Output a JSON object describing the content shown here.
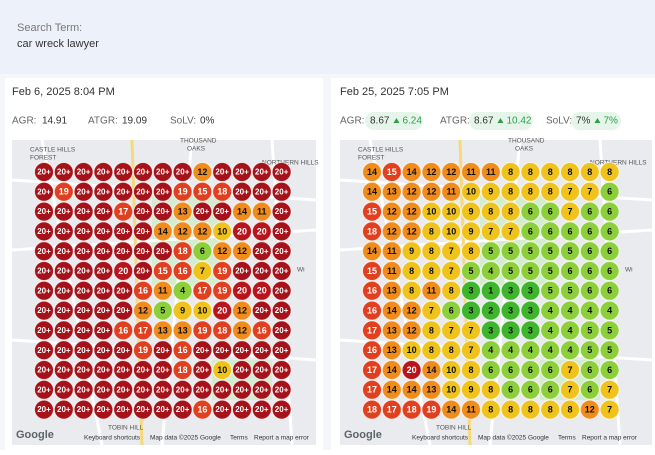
{
  "search": {
    "label": "Search Term:",
    "term": "car wreck lawyer"
  },
  "panels": [
    {
      "date": "Feb 6, 2025 8:04 PM",
      "metrics": [
        {
          "label": "AGR:",
          "value": 14.91
        },
        {
          "label": "ATGR:",
          "value": 19.09
        },
        {
          "label": "SoLV:",
          "value": "0%"
        }
      ],
      "grid": [
        [
          "20+",
          "20+",
          "20+",
          "20+",
          "20+",
          "20+",
          "20+",
          "20+",
          12,
          "20+",
          "20+",
          "20+",
          "20+"
        ],
        [
          "20+",
          19,
          "20+",
          "20+",
          "20+",
          "20+",
          "20+",
          19,
          15,
          18,
          "20+",
          "20+",
          "20+"
        ],
        [
          "20+",
          "20+",
          "20+",
          "20+",
          17,
          "20+",
          "20+",
          13,
          "20+",
          "20+",
          14,
          11,
          "20+"
        ],
        [
          "20+",
          "20+",
          "20+",
          "20+",
          "20+",
          "20+",
          14,
          12,
          12,
          10,
          20,
          20,
          "20+"
        ],
        [
          "20+",
          "20+",
          "20+",
          "20+",
          "20+",
          "20+",
          "20+",
          18,
          6,
          12,
          12,
          "20+",
          "20+"
        ],
        [
          "20+",
          "20+",
          "20+",
          "20+",
          20,
          "20+",
          15,
          16,
          7,
          19,
          "20+",
          "20+",
          "20+"
        ],
        [
          "20+",
          "20+",
          "20+",
          "20+",
          "20+",
          16,
          11,
          4,
          17,
          19,
          20,
          20,
          "20+"
        ],
        [
          "20+",
          "20+",
          "20+",
          "20+",
          "20+",
          12,
          5,
          9,
          10,
          20,
          12,
          "20+",
          "20+"
        ],
        [
          "20+",
          "20+",
          "20+",
          "20+",
          16,
          17,
          13,
          13,
          19,
          18,
          12,
          16,
          "20+"
        ],
        [
          "20+",
          "20+",
          "20+",
          "20+",
          "20+",
          19,
          "20+",
          16,
          "20+",
          "20+",
          "20+",
          "20+",
          "20+"
        ],
        [
          "20+",
          "20+",
          "20+",
          "20+",
          "20+",
          "20+",
          "20+",
          18,
          "20+",
          10,
          "20+",
          "20+",
          "20+"
        ],
        [
          "20+",
          "20+",
          "20+",
          "20+",
          "20+",
          "20+",
          "20+",
          "20+",
          "20+",
          "20+",
          "20+",
          "20+",
          "20+"
        ],
        [
          "20+",
          "20+",
          "20+",
          "20+",
          "20+",
          "20+",
          "20+",
          "20+",
          16,
          "20+",
          "20+",
          "20+",
          "20+"
        ]
      ]
    },
    {
      "date": "Feb 25, 2025 7:05 PM",
      "metrics": [
        {
          "label": "AGR:",
          "value": 8.67,
          "change": 6.24
        },
        {
          "label": "ATGR:",
          "value": 8.67,
          "change": 10.42
        },
        {
          "label": "SoLV:",
          "value": "7%",
          "change": "7%"
        }
      ],
      "grid": [
        [
          14,
          15,
          14,
          12,
          12,
          11,
          11,
          8,
          8,
          8,
          8,
          8,
          8
        ],
        [
          14,
          13,
          12,
          12,
          11,
          10,
          9,
          8,
          8,
          8,
          7,
          7,
          6
        ],
        [
          15,
          12,
          12,
          10,
          10,
          9,
          8,
          8,
          6,
          6,
          7,
          6,
          6
        ],
        [
          18,
          12,
          12,
          8,
          10,
          9,
          7,
          7,
          6,
          6,
          6,
          6,
          6
        ],
        [
          14,
          11,
          9,
          8,
          7,
          8,
          5,
          5,
          5,
          5,
          5,
          6,
          6
        ],
        [
          15,
          11,
          8,
          8,
          7,
          5,
          4,
          5,
          5,
          5,
          6,
          6,
          6
        ],
        [
          16,
          13,
          8,
          11,
          8,
          3,
          1,
          3,
          3,
          5,
          5,
          6,
          6
        ],
        [
          16,
          14,
          12,
          7,
          6,
          3,
          2,
          3,
          3,
          4,
          4,
          4,
          4
        ],
        [
          17,
          13,
          12,
          8,
          7,
          7,
          3,
          3,
          3,
          4,
          4,
          5,
          5
        ],
        [
          16,
          13,
          10,
          8,
          8,
          7,
          4,
          4,
          4,
          4,
          4,
          5,
          5
        ],
        [
          17,
          14,
          20,
          14,
          10,
          8,
          6,
          6,
          6,
          6,
          7,
          6,
          6
        ],
        [
          17,
          14,
          14,
          13,
          10,
          9,
          8,
          6,
          6,
          6,
          7,
          6,
          7
        ],
        [
          18,
          17,
          18,
          19,
          14,
          11,
          8,
          8,
          8,
          8,
          8,
          12,
          7
        ]
      ]
    }
  ],
  "map": {
    "logo": "Google",
    "footer": [
      "Keyboard shortcuts",
      "Map data ©2025 Google",
      "Terms",
      "Report a map error"
    ],
    "labels": [
      "CASTLE HILLS",
      "FOREST",
      "THOUSAND",
      "OAKS",
      "NORTHERN HILLS",
      "TOBIN HILL",
      "Wi"
    ]
  }
}
